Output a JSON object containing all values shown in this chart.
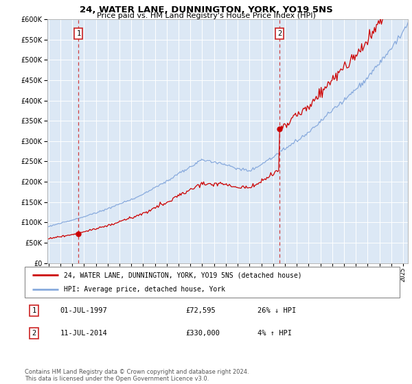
{
  "title": "24, WATER LANE, DUNNINGTON, YORK, YO19 5NS",
  "subtitle": "Price paid vs. HM Land Registry's House Price Index (HPI)",
  "plot_bg_color": "#dce8f5",
  "ylim": [
    0,
    600000
  ],
  "yticks": [
    0,
    50000,
    100000,
    150000,
    200000,
    250000,
    300000,
    350000,
    400000,
    450000,
    500000,
    550000,
    600000
  ],
  "xlim_start": 1994.9,
  "xlim_end": 2025.4,
  "transactions": [
    {
      "date_num": 1997.54,
      "price": 72595,
      "label": "1",
      "hpi_pct": "26% ↓ HPI",
      "date_str": "01-JUL-1997"
    },
    {
      "date_num": 2014.54,
      "price": 330000,
      "label": "2",
      "hpi_pct": "4% ↑ HPI",
      "date_str": "11-JUL-2014"
    }
  ],
  "legend_property_label": "24, WATER LANE, DUNNINGTON, YORK, YO19 5NS (detached house)",
  "legend_hpi_label": "HPI: Average price, detached house, York",
  "footnote": "Contains HM Land Registry data © Crown copyright and database right 2024.\nThis data is licensed under the Open Government Licence v3.0.",
  "property_line_color": "#cc0000",
  "hpi_line_color": "#88aadd",
  "xtick_years": [
    1995,
    1996,
    1997,
    1998,
    1999,
    2000,
    2001,
    2002,
    2003,
    2004,
    2005,
    2006,
    2007,
    2008,
    2009,
    2010,
    2011,
    2012,
    2013,
    2014,
    2015,
    2016,
    2017,
    2018,
    2019,
    2020,
    2021,
    2022,
    2023,
    2024,
    2025
  ]
}
